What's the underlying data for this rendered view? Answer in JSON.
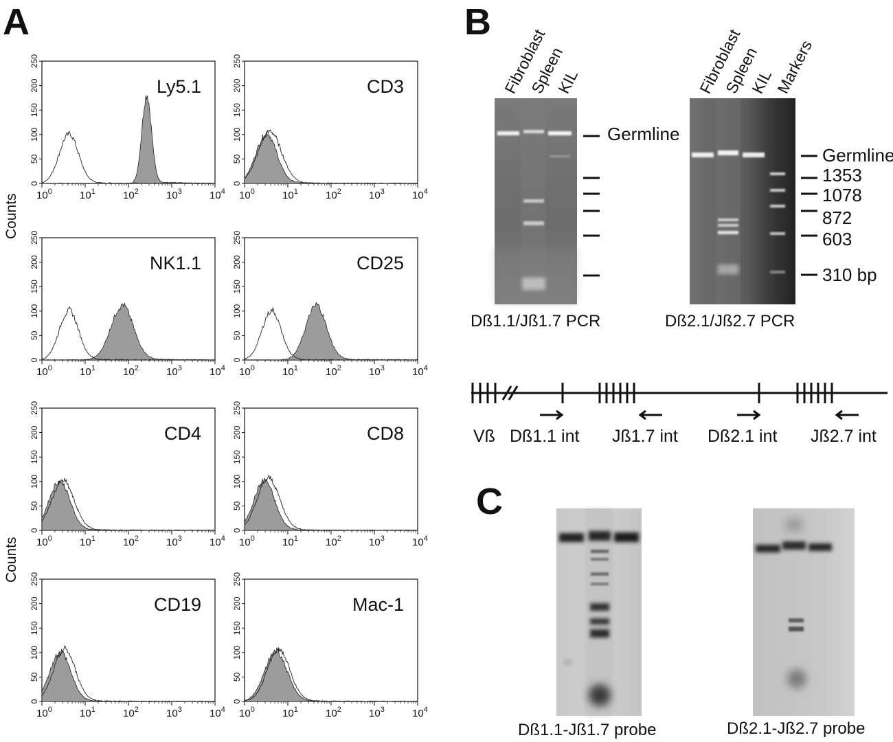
{
  "panels": {
    "a": "A",
    "b": "B",
    "c": "C"
  },
  "histograms": {
    "ylabel": "Counts",
    "yticks": [
      "0",
      "50",
      "100",
      "150",
      "200",
      "250"
    ],
    "xticks": [
      {
        "base": "10",
        "exp": "0"
      },
      {
        "base": "10",
        "exp": "1"
      },
      {
        "base": "10",
        "exp": "2"
      },
      {
        "base": "10",
        "exp": "3"
      },
      {
        "base": "10",
        "exp": "4"
      }
    ],
    "ylim": [
      0,
      250
    ],
    "xlog_range": [
      0,
      4
    ],
    "items": [
      {
        "label": "Ly5.1",
        "open_peak": {
          "mu": 0.62,
          "sigma": 0.22,
          "height": 100
        },
        "fill_peak": {
          "mu": 2.42,
          "sigma": 0.11,
          "height": 180
        }
      },
      {
        "label": "CD3",
        "open_peak": {
          "mu": 0.58,
          "sigma": 0.27,
          "height": 105
        },
        "fill_peak": {
          "mu": 0.5,
          "sigma": 0.24,
          "height": 100
        }
      },
      {
        "label": "NK1.1",
        "open_peak": {
          "mu": 0.62,
          "sigma": 0.22,
          "height": 100
        },
        "fill_peak": {
          "mu": 1.85,
          "sigma": 0.26,
          "height": 110
        }
      },
      {
        "label": "CD25",
        "open_peak": {
          "mu": 0.62,
          "sigma": 0.22,
          "height": 100
        },
        "fill_peak": {
          "mu": 1.65,
          "sigma": 0.24,
          "height": 110
        }
      },
      {
        "label": "CD4",
        "open_peak": {
          "mu": 0.48,
          "sigma": 0.26,
          "height": 100
        },
        "fill_peak": {
          "mu": 0.4,
          "sigma": 0.24,
          "height": 100
        }
      },
      {
        "label": "CD8",
        "open_peak": {
          "mu": 0.55,
          "sigma": 0.26,
          "height": 105
        },
        "fill_peak": {
          "mu": 0.45,
          "sigma": 0.24,
          "height": 100
        }
      },
      {
        "label": "CD19",
        "open_peak": {
          "mu": 0.52,
          "sigma": 0.25,
          "height": 105
        },
        "fill_peak": {
          "mu": 0.42,
          "sigma": 0.24,
          "height": 100
        }
      },
      {
        "label": "Mac-1",
        "open_peak": {
          "mu": 0.78,
          "sigma": 0.26,
          "height": 105
        },
        "fill_peak": {
          "mu": 0.72,
          "sigma": 0.26,
          "height": 100
        }
      }
    ]
  },
  "gels": {
    "lanes_left": [
      "Fibroblast",
      "Spleen",
      "KIL"
    ],
    "lanes_right": [
      "Fibroblast",
      "Spleen",
      "KIL",
      "Markers"
    ],
    "germline_label": "Germline",
    "marker_sizes": [
      "1353",
      "1078",
      "872",
      "603",
      "310 bp"
    ],
    "caption_left": "Dß1.1/Jß1.7 PCR",
    "caption_right": "Dß2.1/Jß2.7 PCR"
  },
  "map": {
    "labels": [
      "Vß",
      "Dß1.1 int",
      "Jß1.7 int",
      "Dß2.1 int",
      "Jß2.7 int"
    ]
  },
  "southern": {
    "caption_left": "Dß1.1-Jß1.7 probe",
    "caption_right": "Dß2.1-Jß2.7 probe"
  }
}
